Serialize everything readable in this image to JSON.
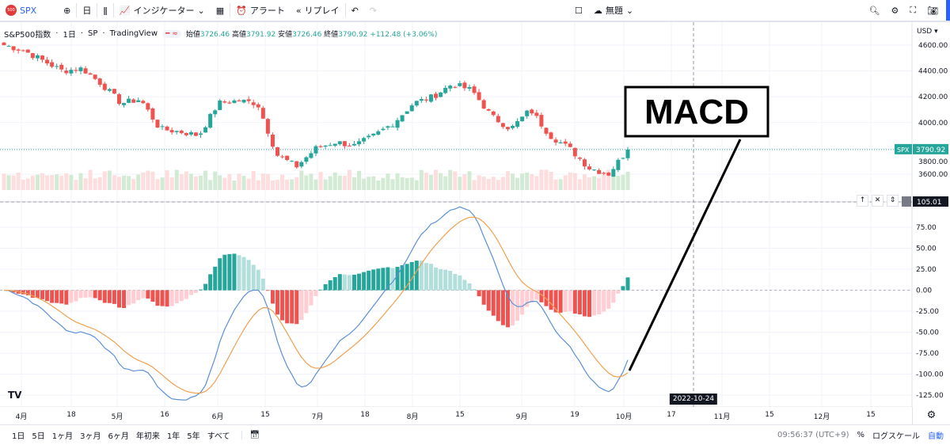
{
  "toolbar": {
    "symbol": "SPX",
    "logo_text": "500",
    "interval": "日",
    "indicators": "インジケーター",
    "alert": "アラート",
    "replay": "リプレイ",
    "layout_name": "無題"
  },
  "legend": {
    "name": "S&P500指数",
    "interval": "1日",
    "exchange": "SP",
    "source": "TradingView",
    "open_label": "始値",
    "open": "3726.46",
    "high_label": "高値",
    "high": "3791.92",
    "low_label": "安値",
    "low": "3726.46",
    "close_label": "終値",
    "close": "3790.92",
    "change": "+112.48 (+3.06%)"
  },
  "price_axis": {
    "currency": "USD",
    "ticks": [
      "4600.00",
      "4400.00",
      "4200.00",
      "4000.00",
      "3800.00",
      "3600.00"
    ],
    "tick_values": [
      4600,
      4400,
      4200,
      4000,
      3800,
      3600
    ],
    "last_symbol": "SPX",
    "last_price": "3790.92"
  },
  "macd_axis": {
    "ticks": [
      "75.00",
      "50.00",
      "25.00",
      "0.00",
      "-25.00",
      "-50.00",
      "-75.00",
      "-100.00",
      "-125.00"
    ],
    "tick_values": [
      75,
      50,
      25,
      0,
      -25,
      -50,
      -75,
      -100,
      -125
    ],
    "cursor_value": "105.01"
  },
  "time_axis": {
    "labels": [
      "4月",
      "18",
      "5月",
      "16",
      "6月",
      "15",
      "7月",
      "18",
      "8月",
      "15",
      "9月",
      "19",
      "10月",
      "17",
      "11月",
      "15",
      "12月",
      "15"
    ],
    "crosshair_date": "2022-10-24"
  },
  "annotation": {
    "text": "MACD"
  },
  "bottom": {
    "ranges": [
      "1日",
      "5日",
      "1ヶ月",
      "3ヶ月",
      "6ヶ月",
      "年初来",
      "1年",
      "5年",
      "すべて"
    ],
    "time": "09:56:37 (UTC+9)",
    "percent": "%",
    "log": "ログスケール",
    "auto": "自動"
  },
  "colors": {
    "up": "#26a69a",
    "down": "#ef5350",
    "macd": "#5b8fd6",
    "signal": "#f0a050"
  },
  "chart_data": {
    "type": "candlestick",
    "close_path": [
      4600,
      4560,
      4480,
      4400,
      4420,
      4300,
      4150,
      4180,
      3950,
      3930,
      3900,
      4150,
      4170,
      4150,
      3750,
      3660,
      3800,
      3850,
      3820,
      3900,
      4000,
      4150,
      4200,
      4300,
      4250,
      4050,
      3950,
      4100,
      3900,
      3800,
      3650,
      3600,
      3790.92
    ]
  }
}
